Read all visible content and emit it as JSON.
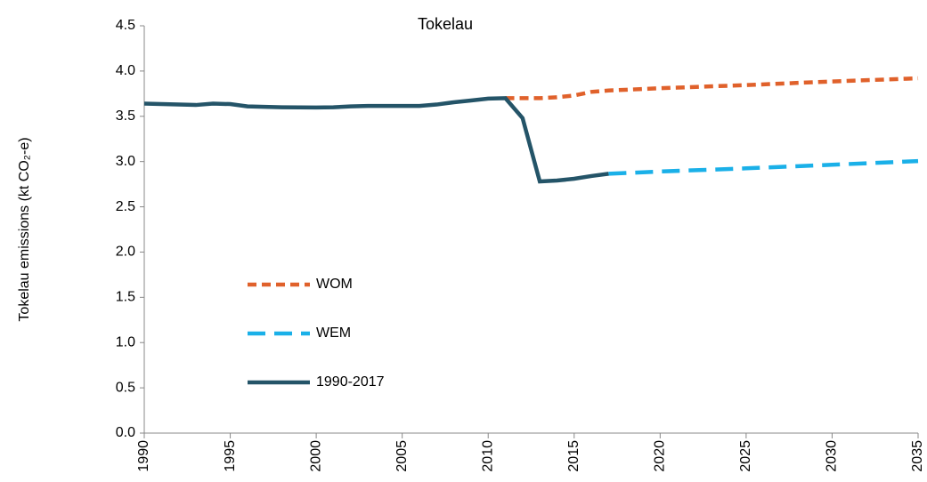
{
  "chart_data": {
    "type": "line",
    "title": "Tokelau",
    "ylabel": "Tokelau emissions (kt CO₂-e)",
    "xlim": [
      1990,
      2035
    ],
    "xticks": [
      1990,
      1995,
      2000,
      2005,
      2010,
      2015,
      2020,
      2025,
      2030,
      2035
    ],
    "ylim": [
      0,
      4.5
    ],
    "yticks": [
      {
        "value": 0,
        "label": "0.0"
      },
      0.5,
      {
        "value": 1,
        "label": "1.0"
      },
      1.5,
      {
        "value": 2,
        "label": "2.0"
      },
      2.5,
      {
        "value": 3,
        "label": "3.0"
      },
      3.5,
      {
        "value": 4,
        "label": "4.0"
      },
      4.5
    ],
    "grid": false,
    "series": [
      {
        "name": "WOM",
        "color": "#e0612b",
        "dash": "dashed",
        "x": [
          2011,
          2012,
          2013,
          2014,
          2015,
          2016,
          2017,
          2020,
          2025,
          2030,
          2035
        ],
        "values": [
          3.7,
          3.7,
          3.7,
          3.71,
          3.73,
          3.77,
          3.785,
          3.81,
          3.845,
          3.885,
          3.92
        ]
      },
      {
        "name": "WEM",
        "color": "#1ab0e8",
        "dash": "long-dashed",
        "x": [
          2017,
          2020,
          2025,
          2030,
          2035
        ],
        "values": [
          2.865,
          2.89,
          2.925,
          2.965,
          3.005
        ]
      },
      {
        "name": "1990-2017",
        "color": "#245468",
        "dash": "solid",
        "x": [
          1990,
          1991,
          1992,
          1993,
          1994,
          1995,
          1996,
          1997,
          1998,
          1999,
          2000,
          2001,
          2002,
          2003,
          2004,
          2005,
          2006,
          2007,
          2008,
          2009,
          2010,
          2011,
          2012,
          2013,
          2014,
          2015,
          2016,
          2017
        ],
        "values": [
          3.64,
          3.635,
          3.63,
          3.625,
          3.64,
          3.635,
          3.61,
          3.605,
          3.6,
          3.598,
          3.597,
          3.6,
          3.61,
          3.615,
          3.615,
          3.615,
          3.615,
          3.63,
          3.655,
          3.675,
          3.695,
          3.7,
          3.48,
          2.78,
          2.79,
          2.81,
          2.84,
          2.865
        ]
      }
    ]
  }
}
